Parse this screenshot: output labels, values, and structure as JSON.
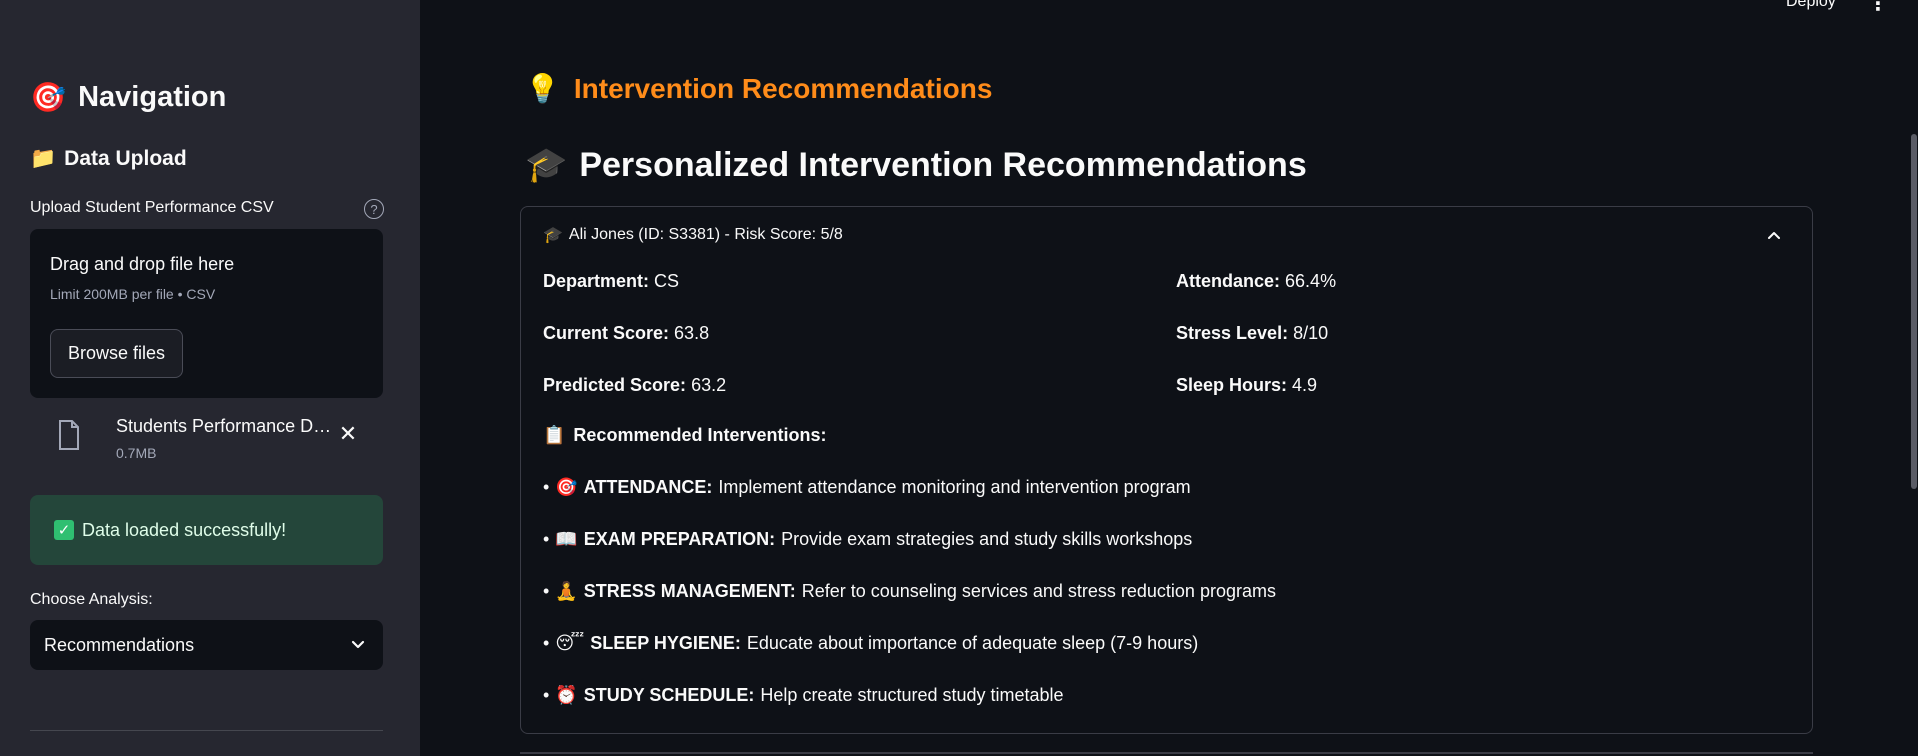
{
  "header": {
    "deploy_label": "Deploy",
    "menu_icon": "⋮"
  },
  "sidebar": {
    "title": "Navigation",
    "title_icon": "🎯",
    "section_title": "Data Upload",
    "section_icon": "📁",
    "upload_label": "Upload Student Performance CSV",
    "help_icon": "?",
    "dropzone": {
      "title": "Drag and drop file here",
      "limit": "Limit 200MB per file • CSV",
      "browse_label": "Browse files"
    },
    "file": {
      "name": "Students Performance Dataset.csv",
      "size": "0.7MB",
      "close": "✕"
    },
    "success_message": "Data loaded successfully!",
    "success_icon": "✓",
    "choose_label": "Choose Analysis:",
    "select_value": "Recommendations"
  },
  "main": {
    "section_title": "Intervention Recommendations",
    "section_icon": "💡",
    "page_title": "Personalized Intervention Recommendations",
    "page_icon": "🎓",
    "card": {
      "header_icon": "🎓",
      "header": "Ali Jones (ID: S3381) - Risk Score: 5/8",
      "department_label": "Department:",
      "department_value": "CS",
      "attendance_label": "Attendance:",
      "attendance_value": "66.4%",
      "current_label": "Current Score:",
      "current_value": "63.8",
      "stress_label": "Stress Level:",
      "stress_value": "8/10",
      "predicted_label": "Predicted Score:",
      "predicted_value": "63.2",
      "sleep_label": "Sleep Hours:",
      "sleep_value": "4.9",
      "rec_icon": "📋",
      "rec_title": "Recommended Interventions:",
      "recommendations": [
        {
          "icon": "🎯",
          "label": "ATTENDANCE:",
          "text": "Implement attendance monitoring and intervention program"
        },
        {
          "icon": "📖",
          "label": "EXAM PREPARATION:",
          "text": "Provide exam strategies and study skills workshops"
        },
        {
          "icon": "🧘",
          "label": "STRESS MANAGEMENT:",
          "text": "Refer to counseling services and stress reduction programs"
        },
        {
          "icon": "😴",
          "label": "SLEEP HYGIENE:",
          "text": "Educate about importance of adequate sleep (7-9 hours)"
        },
        {
          "icon": "⏰",
          "label": "STUDY SCHEDULE:",
          "text": "Help create structured study timetable"
        }
      ]
    }
  }
}
